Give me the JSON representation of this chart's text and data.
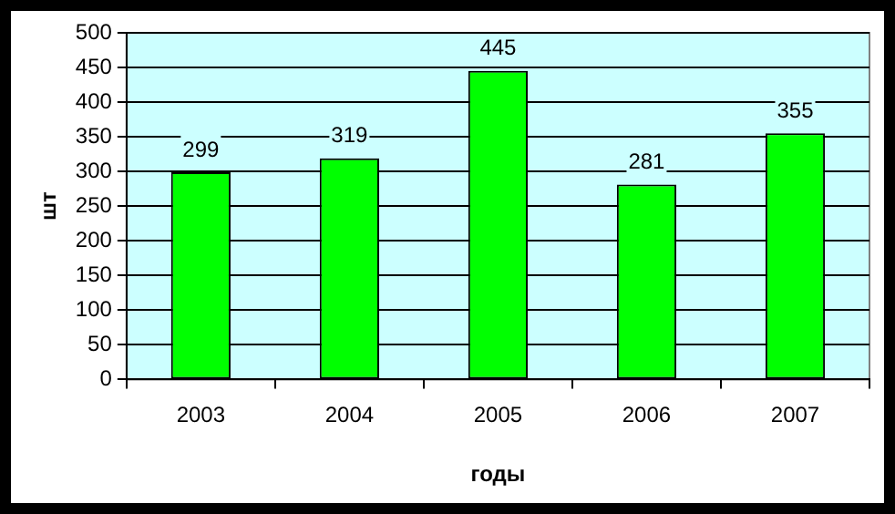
{
  "chart_data": {
    "type": "bar",
    "xlabel": "годы",
    "ylabel": "шт",
    "categories": [
      "2003",
      "2004",
      "2005",
      "2006",
      "2007"
    ],
    "values": [
      299,
      319,
      445,
      281,
      355
    ],
    "color": "#00ff00",
    "ylim": [
      0,
      500
    ],
    "yticks": [
      0,
      50,
      100,
      150,
      200,
      250,
      300,
      350,
      400,
      450,
      500
    ],
    "grid": "y",
    "data_labels": true,
    "legend": false
  }
}
